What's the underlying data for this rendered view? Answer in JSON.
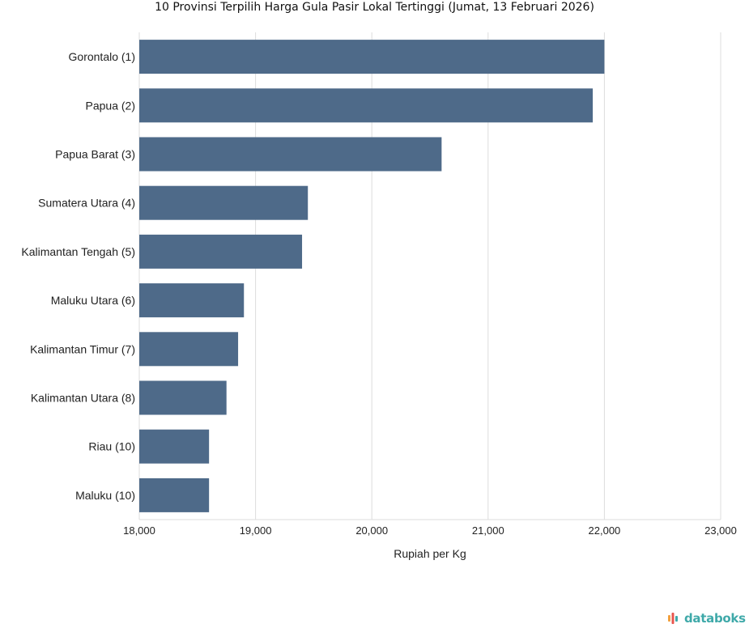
{
  "chart_data": {
    "type": "bar",
    "orientation": "horizontal",
    "title": "10 Provinsi Terpilih Harga Gula Pasir Lokal Tertinggi (Jumat, 13 Februari 2026)",
    "xlabel": "Rupiah per Kg",
    "ylabel": "",
    "xlim": [
      18000,
      23000
    ],
    "xticks": [
      18000,
      19000,
      20000,
      21000,
      22000,
      23000
    ],
    "xtick_labels": [
      "18,000",
      "19,000",
      "20,000",
      "21,000",
      "22,000",
      "23,000"
    ],
    "grid": true,
    "bar_color": "#4e6a89",
    "categories": [
      "Gorontalo (1)",
      "Papua (2)",
      "Papua Barat (3)",
      "Sumatera Utara (4)",
      "Kalimantan Tengah (5)",
      "Maluku Utara (6)",
      "Kalimantan Timur (7)",
      "Kalimantan Utara (8)",
      "Riau (10)",
      "Maluku (10)"
    ],
    "values": [
      22000,
      21900,
      20600,
      19450,
      19400,
      18900,
      18850,
      18750,
      18600,
      18600
    ]
  },
  "branding": {
    "logo_text": "databoks",
    "logo_color": "#3fa9a9",
    "logo_icon": "databoks-bars-icon",
    "logo_icon_colors": [
      "#f2a03d",
      "#e8554e",
      "#3fa9a9"
    ]
  }
}
